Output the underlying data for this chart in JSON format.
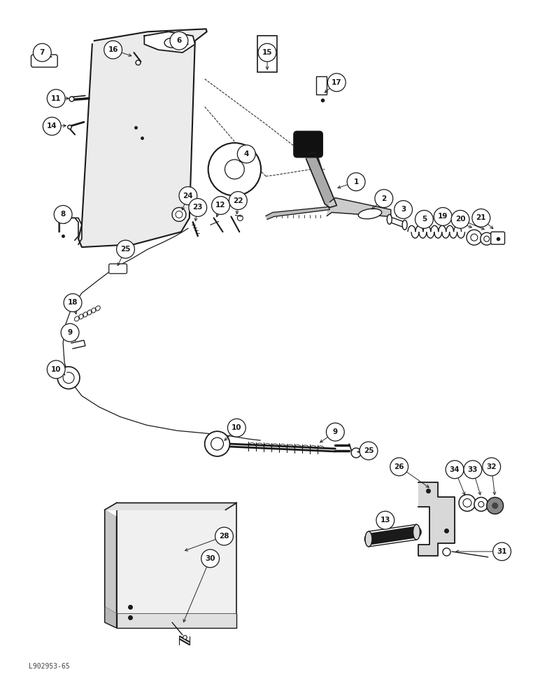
{
  "bg_color": "#ffffff",
  "line_color": "#1a1a1a",
  "watermark": "L902953-65",
  "fig_w": 7.72,
  "fig_h": 10.0,
  "dpi": 100
}
